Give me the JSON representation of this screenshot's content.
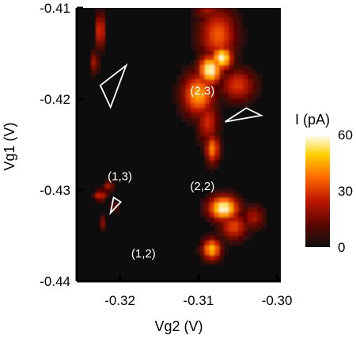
{
  "chart_data": {
    "type": "heatmap",
    "title": "",
    "xlabel": "Vg2 (V)",
    "ylabel": "Vg1 (V)",
    "xlim": [
      -0.3255,
      -0.2995
    ],
    "ylim": [
      -0.44,
      -0.41
    ],
    "xticks": [
      {
        "value": -0.32,
        "label": "-0.32"
      },
      {
        "value": -0.31,
        "label": "-0.31"
      },
      {
        "value": -0.3,
        "label": "-0.30"
      }
    ],
    "yticks": [
      {
        "value": -0.41,
        "label": "-0.41"
      },
      {
        "value": -0.42,
        "label": "-0.42"
      },
      {
        "value": -0.43,
        "label": "-0.43"
      },
      {
        "value": -0.44,
        "label": "-0.44"
      }
    ],
    "colorbar": {
      "label": "I (pA)",
      "range": [
        0,
        60
      ],
      "ticks": [
        {
          "value": 60,
          "label": "60"
        },
        {
          "value": 30,
          "label": "30"
        },
        {
          "value": 0,
          "label": "0"
        }
      ]
    },
    "region_labels": [
      {
        "text": "(2,3)",
        "x": -0.3095,
        "y": -0.4195
      },
      {
        "text": "(2,2)",
        "x": -0.3095,
        "y": -0.43
      },
      {
        "text": "(1,3)",
        "x": -0.32,
        "y": -0.4289
      },
      {
        "text": "(1,2)",
        "x": -0.317,
        "y": -0.4374
      }
    ],
    "triangles": [
      {
        "points": [
          [
            -0.3225,
            -0.4185
          ],
          [
            -0.3192,
            -0.4163
          ],
          [
            -0.3212,
            -0.4209
          ]
        ]
      },
      {
        "points": [
          [
            -0.3066,
            -0.4225
          ],
          [
            -0.3039,
            -0.421
          ],
          [
            -0.302,
            -0.4218
          ]
        ]
      },
      {
        "points": [
          [
            -0.3208,
            -0.4308
          ],
          [
            -0.3199,
            -0.4313
          ],
          [
            -0.3212,
            -0.4325
          ]
        ]
      }
    ],
    "hotspots": [
      {
        "x": -0.3085,
        "y": -0.4168,
        "intensity": 60,
        "sx": 0.001,
        "sy": 0.0011
      },
      {
        "x": -0.307,
        "y": -0.4155,
        "intensity": 58,
        "sx": 0.0009,
        "sy": 0.0009
      },
      {
        "x": -0.31,
        "y": -0.4195,
        "intensity": 45,
        "sx": 0.0014,
        "sy": 0.0016
      },
      {
        "x": -0.3075,
        "y": -0.413,
        "intensity": 35,
        "sx": 0.0016,
        "sy": 0.002
      },
      {
        "x": -0.3088,
        "y": -0.41,
        "intensity": 22,
        "sx": 0.0012,
        "sy": 0.001
      },
      {
        "x": -0.305,
        "y": -0.4185,
        "intensity": 30,
        "sx": 0.0015,
        "sy": 0.0012
      },
      {
        "x": -0.3082,
        "y": -0.4255,
        "intensity": 40,
        "sx": 0.0006,
        "sy": 0.0011
      },
      {
        "x": -0.3088,
        "y": -0.4225,
        "intensity": 28,
        "sx": 0.0009,
        "sy": 0.0016
      },
      {
        "x": -0.3068,
        "y": -0.432,
        "intensity": 60,
        "sx": 0.0013,
        "sy": 0.0009
      },
      {
        "x": -0.3083,
        "y": -0.4365,
        "intensity": 48,
        "sx": 0.0008,
        "sy": 0.0008
      },
      {
        "x": -0.3055,
        "y": -0.434,
        "intensity": 32,
        "sx": 0.0012,
        "sy": 0.001
      },
      {
        "x": -0.303,
        "y": -0.433,
        "intensity": 22,
        "sx": 0.001,
        "sy": 0.0009
      },
      {
        "x": -0.3225,
        "y": -0.4125,
        "intensity": 34,
        "sx": 0.0004,
        "sy": 0.0013
      },
      {
        "x": -0.3232,
        "y": -0.416,
        "intensity": 26,
        "sx": 0.0003,
        "sy": 0.0008
      },
      {
        "x": -0.3225,
        "y": -0.4306,
        "intensity": 30,
        "sx": 0.0005,
        "sy": 0.0004
      },
      {
        "x": -0.3214,
        "y": -0.4296,
        "intensity": 24,
        "sx": 0.0004,
        "sy": 0.0004
      },
      {
        "x": -0.3222,
        "y": -0.4336,
        "intensity": 20,
        "sx": 0.0003,
        "sy": 0.0005
      },
      {
        "x": -0.3207,
        "y": -0.4318,
        "intensity": 16,
        "sx": 0.0004,
        "sy": 0.0004
      }
    ],
    "colors": {
      "background": "#0d0d0d",
      "colormap": [
        "#101010",
        "#5a0500",
        "#c01800",
        "#ff6a00",
        "#ffd000",
        "#ffffff"
      ],
      "annotation": "#ffffff"
    }
  }
}
